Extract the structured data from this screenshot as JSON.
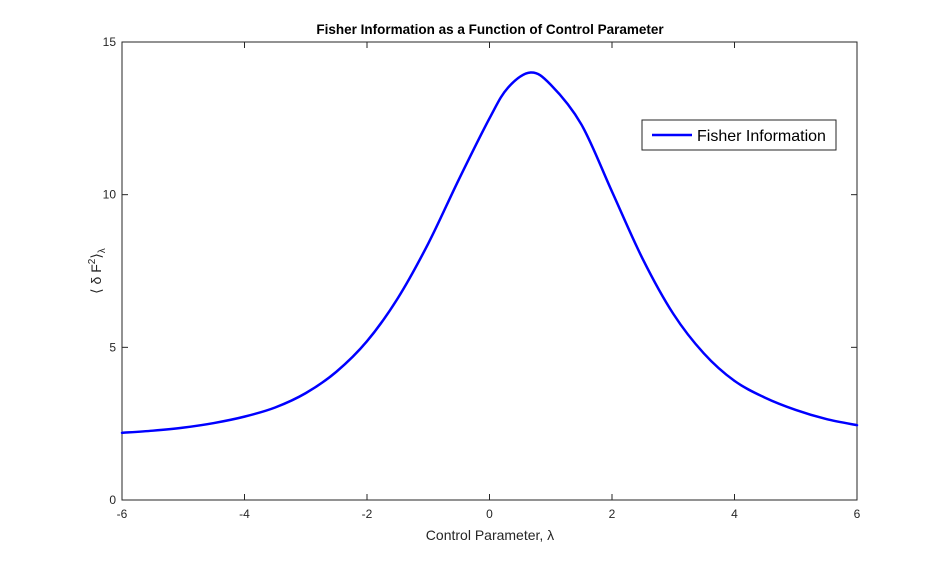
{
  "chart_data": {
    "type": "line",
    "title": "Fisher Information as a Function of Control Parameter",
    "xlabel": "Control Parameter, λ",
    "ylabel": "⟨ δ F² ⟩λ",
    "ylabel_parts": {
      "left": "⟨ δ F",
      "sup": "2",
      "right": "⟩",
      "sub": "λ"
    },
    "xlim": [
      -6,
      6
    ],
    "ylim": [
      0,
      15
    ],
    "xticks": [
      -6,
      -4,
      -2,
      0,
      2,
      4,
      6
    ],
    "yticks": [
      0,
      5,
      10,
      15
    ],
    "xtick_labels": [
      "-6",
      "-4",
      "-2",
      "0",
      "2",
      "4",
      "6"
    ],
    "ytick_labels": [
      "0",
      "5",
      "10",
      "15"
    ],
    "grid": false,
    "legend": {
      "position": "upper-right",
      "entries": [
        "Fisher Information"
      ]
    },
    "series": [
      {
        "name": "Fisher Information",
        "color": "#0000ff",
        "x": [
          -6,
          -5.5,
          -5,
          -4.5,
          -4,
          -3.5,
          -3,
          -2.5,
          -2,
          -1.5,
          -1,
          -0.5,
          0,
          0.3,
          0.67,
          1,
          1.5,
          2,
          2.5,
          3,
          3.5,
          4,
          4.5,
          5,
          5.5,
          6
        ],
        "y": [
          2.2,
          2.27,
          2.37,
          2.52,
          2.73,
          3.03,
          3.5,
          4.2,
          5.2,
          6.6,
          8.4,
          10.5,
          12.5,
          13.5,
          14.0,
          13.6,
          12.3,
          10.1,
          7.9,
          6.1,
          4.8,
          3.9,
          3.35,
          2.95,
          2.65,
          2.45
        ]
      }
    ]
  }
}
